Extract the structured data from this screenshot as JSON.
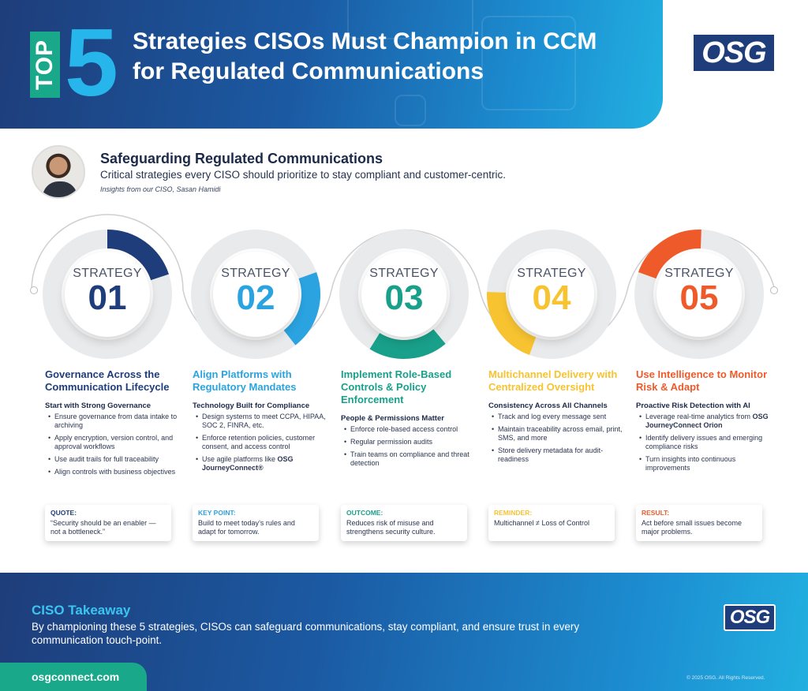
{
  "header": {
    "badge": "TOP",
    "number": "5",
    "title": "Strategies CISOs Must Champion in CCM for Regulated Communications",
    "logo_text": "OSG"
  },
  "intro": {
    "title": "Safeguarding Regulated Communications",
    "subtitle": "Critical strategies every CISO should prioritize to stay compliant and customer-centric.",
    "credit": "Insights from our CISO, Sasan Hamidi"
  },
  "strategies": [
    {
      "label": "STRATEGY",
      "number": "01",
      "color": "#1e3d7a",
      "progress": 0.2,
      "title": "Governance Across the Communication Lifecycle",
      "subhead": "Start with Strong Governance",
      "bullets": [
        "Ensure governance from data intake to archiving",
        "Apply encryption, version control, and approval workflows",
        "Use audit trails for full traceability",
        "Align controls with business objectives"
      ],
      "note_title": "QUOTE:",
      "note_text": "“Security should be an enabler — not a bottleneck.”"
    },
    {
      "label": "STRATEGY",
      "number": "02",
      "color": "#2aa3e0",
      "progress": 0.2,
      "title": "Align Platforms with Regulatory Mandates",
      "subhead": "Technology Built for Compliance",
      "bullets": [
        "Design systems to meet CCPA, HIPAA, SOC 2, FINRA, etc.",
        "Enforce retention policies, customer consent, and access control"
      ],
      "bullet_last_prefix": "Use agile platforms like ",
      "bullet_last_bold": "OSG JourneyConnect®",
      "note_title": "KEY POINT:",
      "note_text": "Build to meet today’s rules and adapt for tomorrow."
    },
    {
      "label": "STRATEGY",
      "number": "03",
      "color": "#19a08a",
      "progress": 0.2,
      "title": "Implement Role-Based Controls & Policy Enforcement",
      "subhead": "People & Permissions Matter",
      "bullets": [
        "Enforce role-based access control",
        "Regular permission audits",
        "Train teams on compliance and threat detection"
      ],
      "note_title": "OUTCOME:",
      "note_text": "Reduces risk of misuse and strengthens security culture."
    },
    {
      "label": "STRATEGY",
      "number": "04",
      "color": "#f7c331",
      "progress": 0.2,
      "title": "Multichannel Delivery with Centralized Oversight",
      "subhead": "Consistency Across All Channels",
      "bullets": [
        "Track and log every message sent",
        "Maintain traceability across email, print, SMS, and more",
        "Store delivery metadata for audit-readiness"
      ],
      "note_title": "REMINDER:",
      "note_text": "Multichannel ≠ Loss of Control"
    },
    {
      "label": "STRATEGY",
      "number": "05",
      "color": "#ef5a2a",
      "progress": 0.2,
      "title": "Use Intelligence to Monitor Risk & Adapt",
      "subhead": "Proactive Risk Detection with AI",
      "bullet_first_prefix": "Leverage real-time analytics from ",
      "bullet_first_bold": "OSG JourneyConnect Orion",
      "bullets": [
        "Identify delivery issues and emerging compliance risks",
        "Turn insights into continuous improvements"
      ],
      "note_title": "RESULT:",
      "note_text": "Act before small issues become major problems."
    }
  ],
  "footer": {
    "title": "CISO Takeaway",
    "text": "By championing these 5 strategies, CISOs can safeguard communications, stay compliant, and ensure trust in every communication touch-point.",
    "url": "osgconnect.com",
    "copyright": "© 2025 OSG. All Rights Reserved.",
    "logo_text": "OSG"
  }
}
